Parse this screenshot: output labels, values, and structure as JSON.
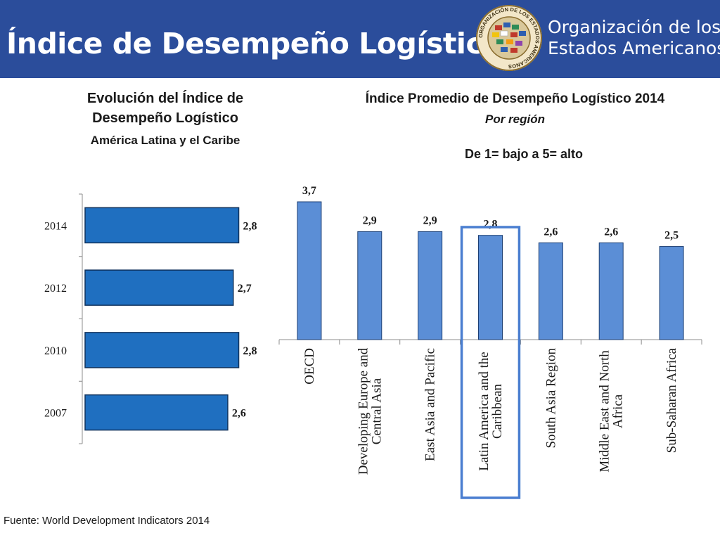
{
  "header": {
    "title": "Índice de Desempeño Logístico",
    "org_line1": "Organización de los",
    "org_line2": "Estados Americanos",
    "seal_text": "ORGANIZACIÓN DE LOS ESTADOS AMERICANOS",
    "colors": {
      "banner": "#2b4d9b",
      "text": "#ffffff"
    }
  },
  "left_panel": {
    "title_line1": "Evolución del Índice de",
    "title_line2": "Desempeño Logístico",
    "subtitle": "América Latina y el Caribe"
  },
  "right_panel": {
    "title": "Índice Promedio de Desempeño Logístico 2014",
    "subtitle": "Por región",
    "scale_note": "De 1= bajo a 5= alto"
  },
  "chart_data": [
    {
      "type": "bar",
      "orientation": "horizontal",
      "categories": [
        "2014",
        "2012",
        "2010",
        "2007"
      ],
      "values": [
        2.8,
        2.7,
        2.8,
        2.6
      ],
      "data_labels": [
        "2,8",
        "2,7",
        "2,8",
        "2,6"
      ],
      "bar_color": "#1f6fc0",
      "xlim": [
        0,
        4.1
      ]
    },
    {
      "type": "bar",
      "orientation": "vertical",
      "categories": [
        "OECD",
        "Developing Europe and Central Asia",
        "East Asia and Pacific",
        "Latin America and the Caribbean",
        "South Asia Region",
        "Middle East and North Africa",
        "Sub-Saharan Africa"
      ],
      "category_label_lines": [
        [
          "OECD"
        ],
        [
          "Developing Europe and",
          "Central Asia"
        ],
        [
          "East Asia and Pacific"
        ],
        [
          "Latin America and the",
          "Caribbean"
        ],
        [
          "South Asia Region"
        ],
        [
          "Middle East and North",
          "Africa"
        ],
        [
          "Sub-Saharan Africa"
        ]
      ],
      "values": [
        3.7,
        2.9,
        2.9,
        2.8,
        2.6,
        2.6,
        2.5
      ],
      "data_labels": [
        "3,7",
        "2,9",
        "2,9",
        "2,8",
        "2,6",
        "2,6",
        "2,5"
      ],
      "bar_color": "#5b8ed6",
      "highlight_category": "Latin America and the Caribbean",
      "highlight_color": "#4a7ed0",
      "ylim": [
        0,
        3.7
      ]
    }
  ],
  "footer": {
    "source": "Fuente: World Development Indicators 2014"
  }
}
